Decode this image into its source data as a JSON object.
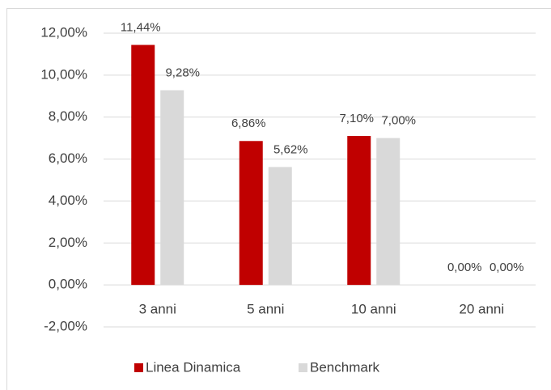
{
  "chart_data": {
    "type": "bar",
    "categories": [
      "3 anni",
      "5 anni",
      "10 anni",
      "20 anni"
    ],
    "series": [
      {
        "name": "Linea Dinamica",
        "color": "#c00000",
        "values": [
          11.44,
          6.86,
          7.1,
          0
        ],
        "value_labels": [
          "11,44%",
          "6,86%",
          "7,10%",
          "0,00%"
        ]
      },
      {
        "name": "Benchmark",
        "color": "#d9d9d9",
        "values": [
          9.28,
          5.62,
          7.0,
          0
        ],
        "value_labels": [
          "9,28%",
          "5,62%",
          "7,00%",
          "0,00%"
        ]
      }
    ],
    "ylim": [
      -2,
      12
    ],
    "yticks": [
      {
        "value": -2,
        "label": "-2,00%"
      },
      {
        "value": 0,
        "label": "0,00%"
      },
      {
        "value": 2,
        "label": "2,00%"
      },
      {
        "value": 4,
        "label": "4,00%"
      },
      {
        "value": 6,
        "label": "6,00%"
      },
      {
        "value": 8,
        "label": "8,00%"
      },
      {
        "value": 10,
        "label": "10,00%"
      },
      {
        "value": 12,
        "label": "12,00%"
      }
    ],
    "grid": true,
    "legend": "bottom"
  }
}
